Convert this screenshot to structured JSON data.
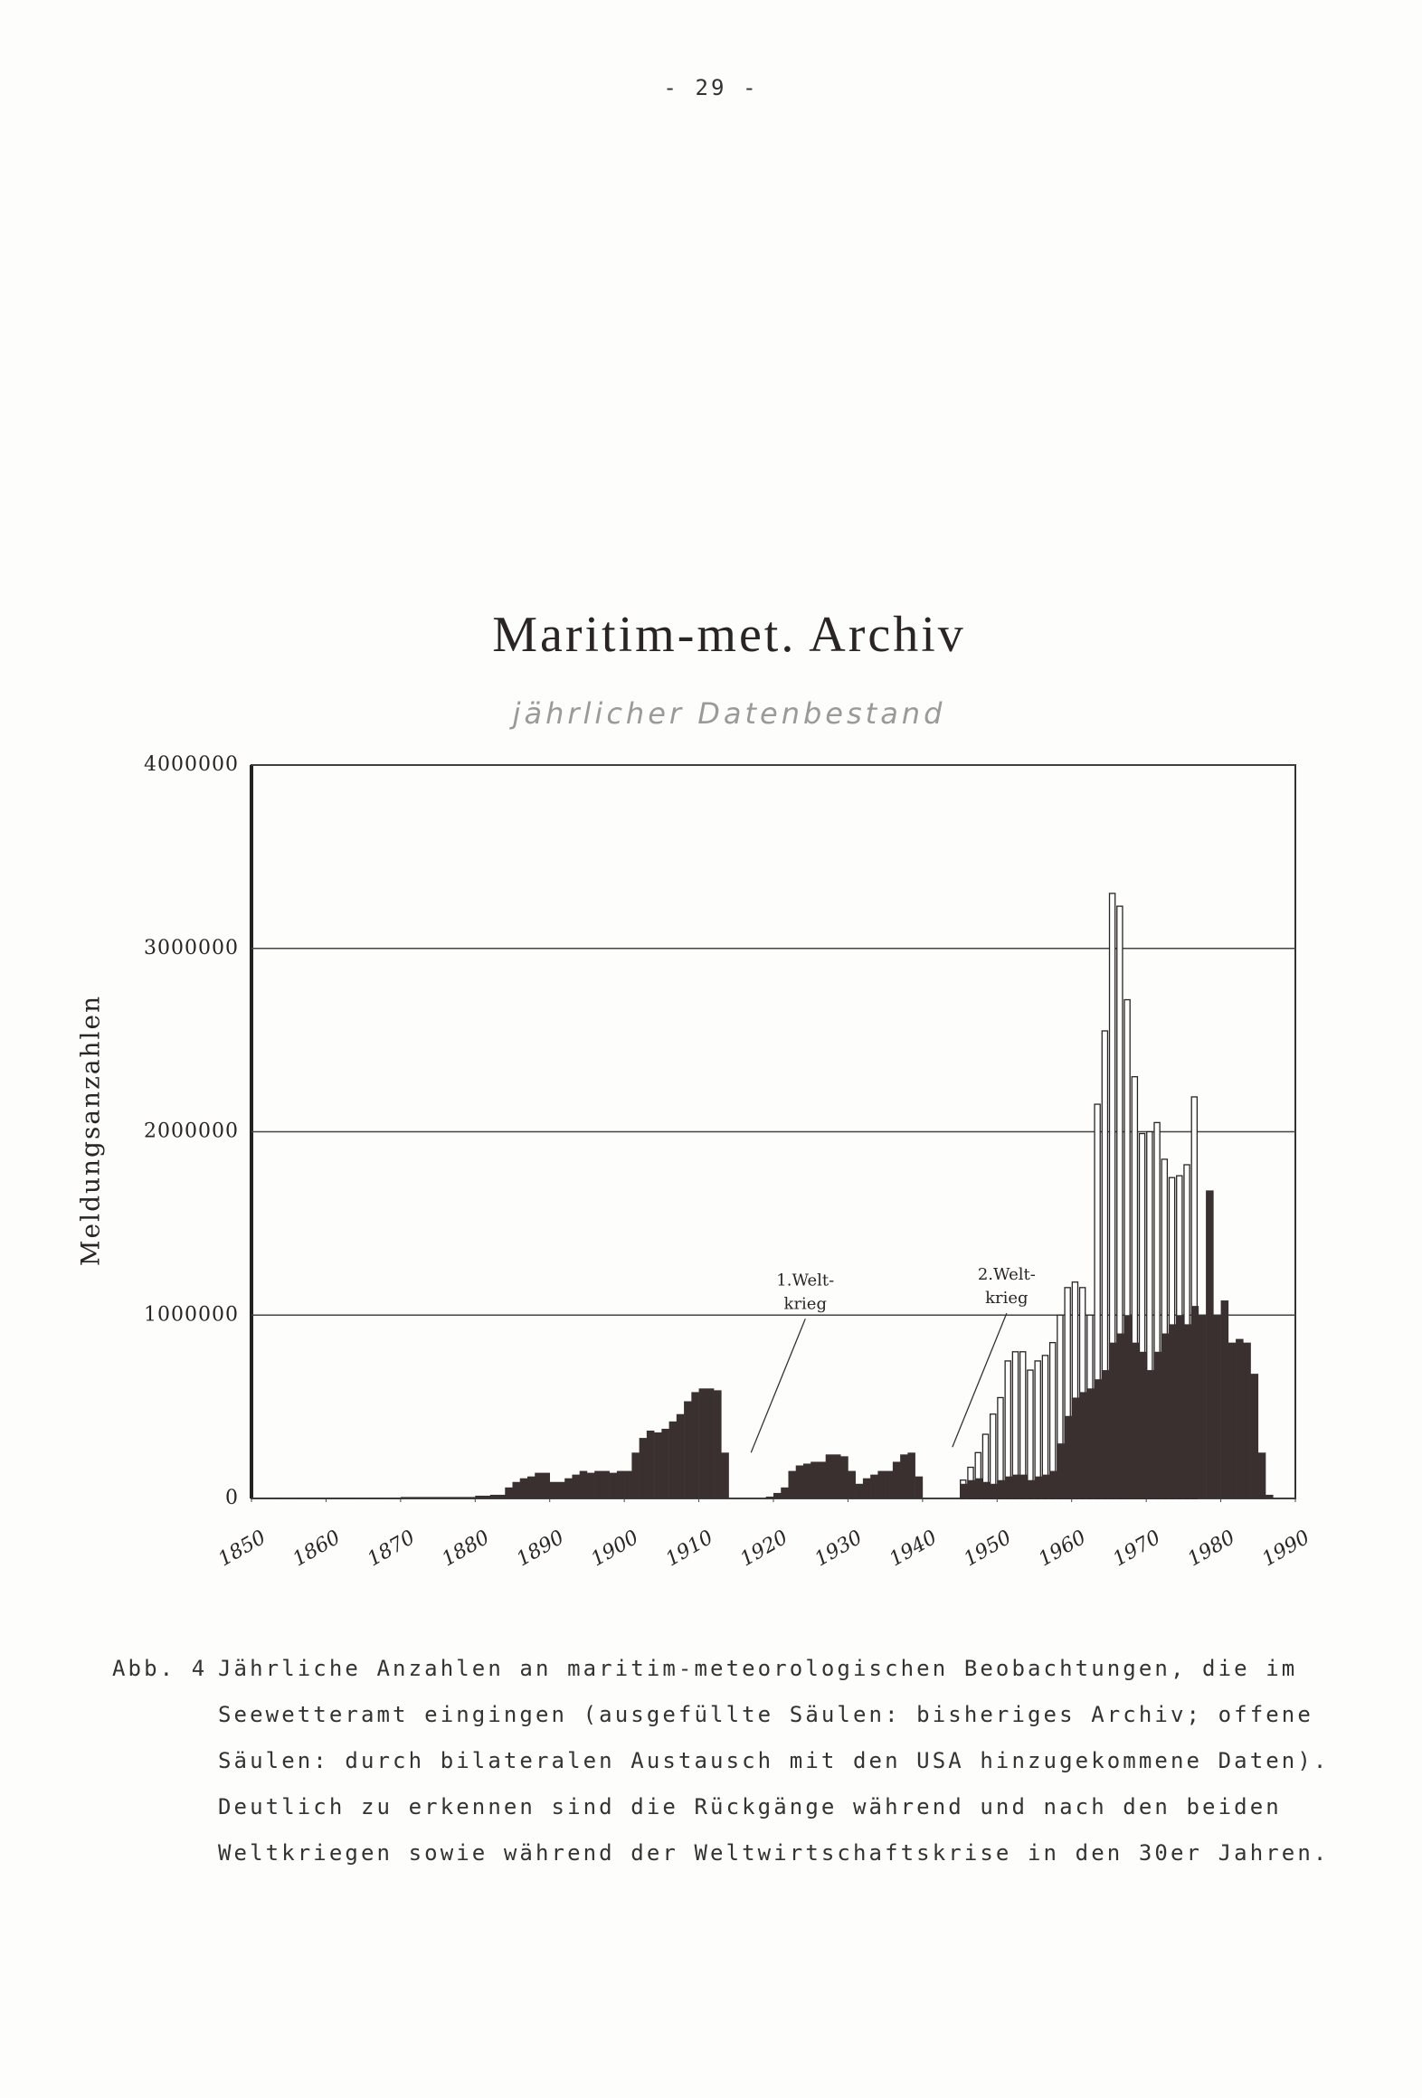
{
  "page_number": "- 29 -",
  "chart_data": {
    "type": "bar",
    "title": "Maritim-met. Archiv",
    "subtitle": "jährlicher Datenbestand",
    "y_label": "Meldungsanzahlen",
    "x": [
      1850,
      1851,
      1852,
      1853,
      1854,
      1855,
      1856,
      1857,
      1858,
      1859,
      1860,
      1861,
      1862,
      1863,
      1864,
      1865,
      1866,
      1867,
      1868,
      1869,
      1870,
      1871,
      1872,
      1873,
      1874,
      1875,
      1876,
      1877,
      1878,
      1879,
      1880,
      1881,
      1882,
      1883,
      1884,
      1885,
      1886,
      1887,
      1888,
      1889,
      1890,
      1891,
      1892,
      1893,
      1894,
      1895,
      1896,
      1897,
      1898,
      1899,
      1900,
      1901,
      1902,
      1903,
      1904,
      1905,
      1906,
      1907,
      1908,
      1909,
      1910,
      1911,
      1912,
      1913,
      1914,
      1915,
      1916,
      1917,
      1918,
      1919,
      1920,
      1921,
      1922,
      1923,
      1924,
      1925,
      1926,
      1927,
      1928,
      1929,
      1930,
      1931,
      1932,
      1933,
      1934,
      1935,
      1936,
      1937,
      1938,
      1939,
      1940,
      1941,
      1942,
      1943,
      1944,
      1945,
      1946,
      1947,
      1948,
      1949,
      1950,
      1951,
      1952,
      1953,
      1954,
      1955,
      1956,
      1957,
      1958,
      1959,
      1960,
      1961,
      1962,
      1963,
      1964,
      1965,
      1966,
      1967,
      1968,
      1969,
      1970,
      1971,
      1972,
      1973,
      1974,
      1975,
      1976,
      1977,
      1978,
      1979,
      1980,
      1981,
      1982,
      1983,
      1984,
      1985,
      1986
    ],
    "series": [
      {
        "style": "open",
        "color": "#ffffff",
        "values": [
          null,
          null,
          null,
          null,
          null,
          null,
          null,
          null,
          null,
          null,
          null,
          null,
          null,
          null,
          null,
          null,
          null,
          null,
          null,
          null,
          null,
          null,
          null,
          null,
          null,
          null,
          null,
          null,
          null,
          null,
          null,
          null,
          null,
          null,
          null,
          null,
          null,
          null,
          null,
          null,
          null,
          null,
          null,
          null,
          null,
          null,
          null,
          null,
          null,
          null,
          null,
          null,
          null,
          null,
          null,
          null,
          null,
          null,
          null,
          null,
          null,
          null,
          null,
          null,
          null,
          null,
          null,
          null,
          null,
          null,
          null,
          null,
          null,
          null,
          null,
          null,
          null,
          null,
          null,
          null,
          null,
          null,
          null,
          null,
          null,
          null,
          null,
          null,
          null,
          null,
          null,
          null,
          null,
          null,
          null,
          100000,
          170000,
          250000,
          350000,
          460000,
          550000,
          750000,
          800000,
          800000,
          700000,
          750000,
          780000,
          850000,
          1000000,
          1150000,
          1180000,
          1150000,
          1000000,
          2150000,
          2550000,
          3300000,
          3230000,
          2720000,
          2300000,
          1990000,
          2000000,
          2050000,
          1850000,
          1750000,
          1760000,
          1820000,
          2190000,
          null,
          null,
          null,
          null,
          null,
          null,
          null,
          null,
          null,
          null
        ]
      },
      {
        "style": "filled",
        "color": "#3a3030",
        "values": [
          3000,
          3000,
          3000,
          3000,
          3000,
          3000,
          3000,
          3000,
          3000,
          3000,
          3000,
          3000,
          3000,
          3000,
          3000,
          3000,
          3000,
          3000,
          3000,
          3000,
          8000,
          8000,
          8000,
          8000,
          8000,
          8000,
          8000,
          8000,
          8000,
          8000,
          15000,
          15000,
          20000,
          20000,
          60000,
          90000,
          110000,
          120000,
          140000,
          140000,
          90000,
          90000,
          110000,
          130000,
          150000,
          140000,
          150000,
          150000,
          140000,
          150000,
          150000,
          250000,
          330000,
          370000,
          360000,
          380000,
          420000,
          460000,
          530000,
          580000,
          600000,
          600000,
          590000,
          250000,
          null,
          null,
          null,
          null,
          null,
          10000,
          30000,
          60000,
          150000,
          180000,
          190000,
          200000,
          200000,
          240000,
          240000,
          230000,
          150000,
          80000,
          110000,
          130000,
          150000,
          150000,
          200000,
          240000,
          250000,
          120000,
          null,
          null,
          null,
          null,
          null,
          80000,
          100000,
          110000,
          90000,
          80000,
          100000,
          120000,
          130000,
          130000,
          100000,
          120000,
          130000,
          150000,
          300000,
          450000,
          550000,
          580000,
          600000,
          650000,
          700000,
          850000,
          900000,
          1000000,
          850000,
          800000,
          700000,
          800000,
          900000,
          950000,
          1000000,
          950000,
          1050000,
          1000000,
          1680000,
          1000000,
          1080000,
          850000,
          870000,
          850000,
          680000,
          250000,
          20000
        ]
      }
    ],
    "xlim": [
      1850,
      1990
    ],
    "xticks": [
      1850,
      1860,
      1870,
      1880,
      1890,
      1900,
      1910,
      1920,
      1930,
      1940,
      1950,
      1960,
      1970,
      1980,
      1990
    ],
    "ylim": [
      0,
      4000000
    ],
    "yticks": [
      0,
      1000000,
      2000000,
      3000000,
      4000000
    ],
    "grid": true,
    "annotations": [
      {
        "lines": [
          "1.Welt-",
          "krieg"
        ],
        "x": 1917,
        "y": 250000
      },
      {
        "lines": [
          "2.Welt-",
          "krieg"
        ],
        "x": 1944,
        "y": 280000
      }
    ]
  },
  "caption": {
    "label": "Abb. 4",
    "lines": [
      "Jährliche Anzahlen an maritim-meteorologischen Beobachtungen, die im",
      "Seewetteramt eingingen (ausgefüllte Säulen: bisheriges Archiv; offene",
      "Säulen: durch bilateralen Austausch mit den USA hinzugekommene Daten).",
      "Deutlich zu erkennen sind die Rückgänge während und nach den beiden",
      "Weltkriegen sowie während der Weltwirtschaftskrise in den 30er Jahren."
    ]
  }
}
